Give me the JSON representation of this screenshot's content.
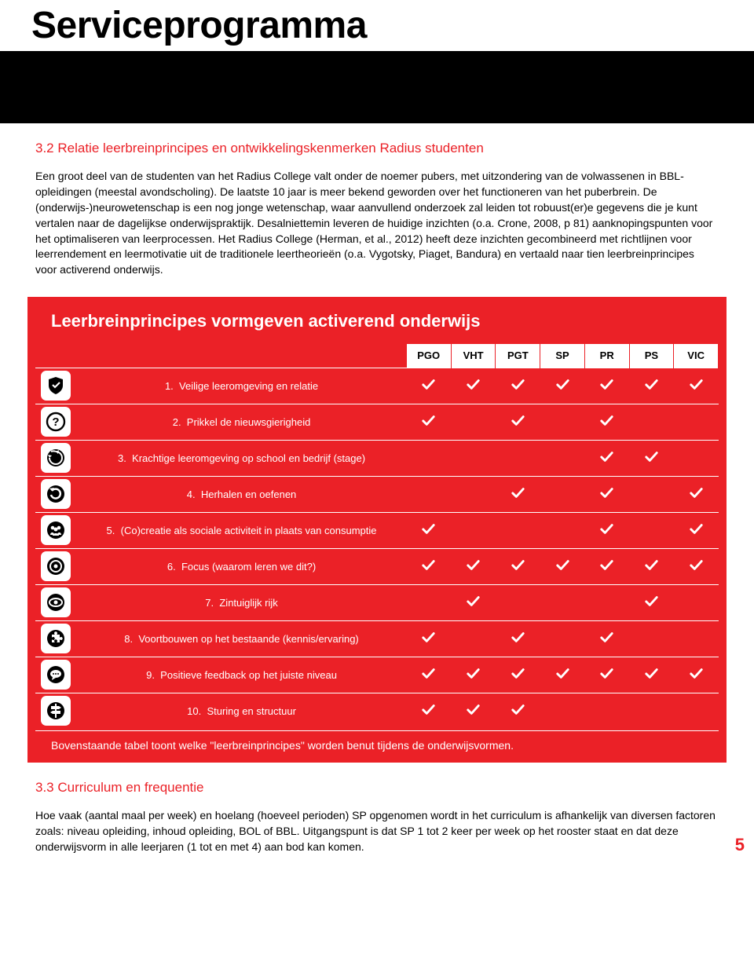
{
  "page_title": "Serviceprogramma",
  "section32": {
    "heading": "3.2  Relatie leerbreinprincipes en ontwikkelingskenmerken Radius studenten",
    "body": "Een groot deel van de studenten van het Radius College valt onder de noemer pubers, met uitzondering van de volwassenen in BBL-opleidingen (meestal avondscholing). De laatste 10 jaar is meer bekend geworden over het functioneren van het puberbrein. De (onderwijs-)neurowetenschap is een nog jonge wetenschap, waar aanvullend onderzoek zal leiden tot robuust(er)e gegevens die je kunt vertalen naar de dagelijkse onderwijspraktijk. Desalniettemin leveren de huidige inzichten (o.a. Crone, 2008, p 81) aanknopingspunten voor het optimaliseren van leerprocessen. Het Radius College (Herman, et al., 2012) heeft deze inzichten gecombineerd met richtlijnen voor leerrendement en leermotivatie uit de traditionele leertheorieën (o.a. Vygotsky, Piaget, Bandura) en vertaald naar tien leerbreinprincipes voor activerend onderwijs."
  },
  "matrix": {
    "title": "Leerbreinprincipes vormgeven activerend onderwijs",
    "columns": [
      "PGO",
      "VHT",
      "PGT",
      "SP",
      "PR",
      "PS",
      "VIC"
    ],
    "rows": [
      {
        "n": "1.",
        "label": "Veilige leeromgeving en relatie",
        "icon": "shield",
        "checks": [
          1,
          1,
          1,
          1,
          1,
          1,
          1
        ]
      },
      {
        "n": "2.",
        "label": "Prikkel de nieuwsgierigheid",
        "icon": "question",
        "checks": [
          1,
          0,
          1,
          0,
          1,
          0,
          0
        ]
      },
      {
        "n": "3.",
        "label": "Krachtige leeromgeving op school en bedrijf (stage)",
        "icon": "cycle",
        "checks": [
          0,
          0,
          0,
          0,
          1,
          1,
          0
        ]
      },
      {
        "n": "4.",
        "label": "Herhalen en oefenen",
        "icon": "repeat",
        "checks": [
          0,
          0,
          1,
          0,
          1,
          0,
          1
        ]
      },
      {
        "n": "5.",
        "label": "(Co)creatie als sociale activiteit in plaats van consumptie",
        "icon": "people",
        "checks": [
          1,
          0,
          0,
          0,
          1,
          0,
          1
        ]
      },
      {
        "n": "6.",
        "label": "Focus (waarom leren we dit?)",
        "icon": "target",
        "checks": [
          1,
          1,
          1,
          1,
          1,
          1,
          1
        ]
      },
      {
        "n": "7.",
        "label": "Zintuiglijk rijk",
        "icon": "eye",
        "checks": [
          0,
          1,
          0,
          0,
          0,
          1,
          0
        ]
      },
      {
        "n": "8.",
        "label": "Voortbouwen op het bestaande (kennis/ervaring)",
        "icon": "puzzle",
        "checks": [
          1,
          0,
          1,
          0,
          1,
          0,
          0
        ]
      },
      {
        "n": "9.",
        "label": "Positieve feedback op het juiste niveau",
        "icon": "speech",
        "checks": [
          1,
          1,
          1,
          1,
          1,
          1,
          1
        ]
      },
      {
        "n": "10.",
        "label": "Sturing en structuur",
        "icon": "signpost",
        "checks": [
          1,
          1,
          1,
          0,
          0,
          0,
          0
        ]
      }
    ],
    "caption": "Bovenstaande tabel toont welke \"leerbreinprincipes\" worden benut tijdens de onderwijsvormen."
  },
  "section33": {
    "heading": "3.3  Curriculum en frequentie",
    "body": "Hoe vaak (aantal maal per week) en hoelang (hoeveel perioden) SP opgenomen wordt in het curriculum is afhankelijk van diversen factoren zoals: niveau opleiding, inhoud opleiding, BOL of BBL. Uitgangspunt is dat SP 1 tot 2 keer per week op het rooster staat en dat deze onderwijsvorm in alle leerjaren (1 tot en met 4) aan bod kan komen."
  },
  "page_number": "5",
  "colors": {
    "accent": "#eb2127",
    "black": "#000000",
    "white": "#ffffff"
  }
}
